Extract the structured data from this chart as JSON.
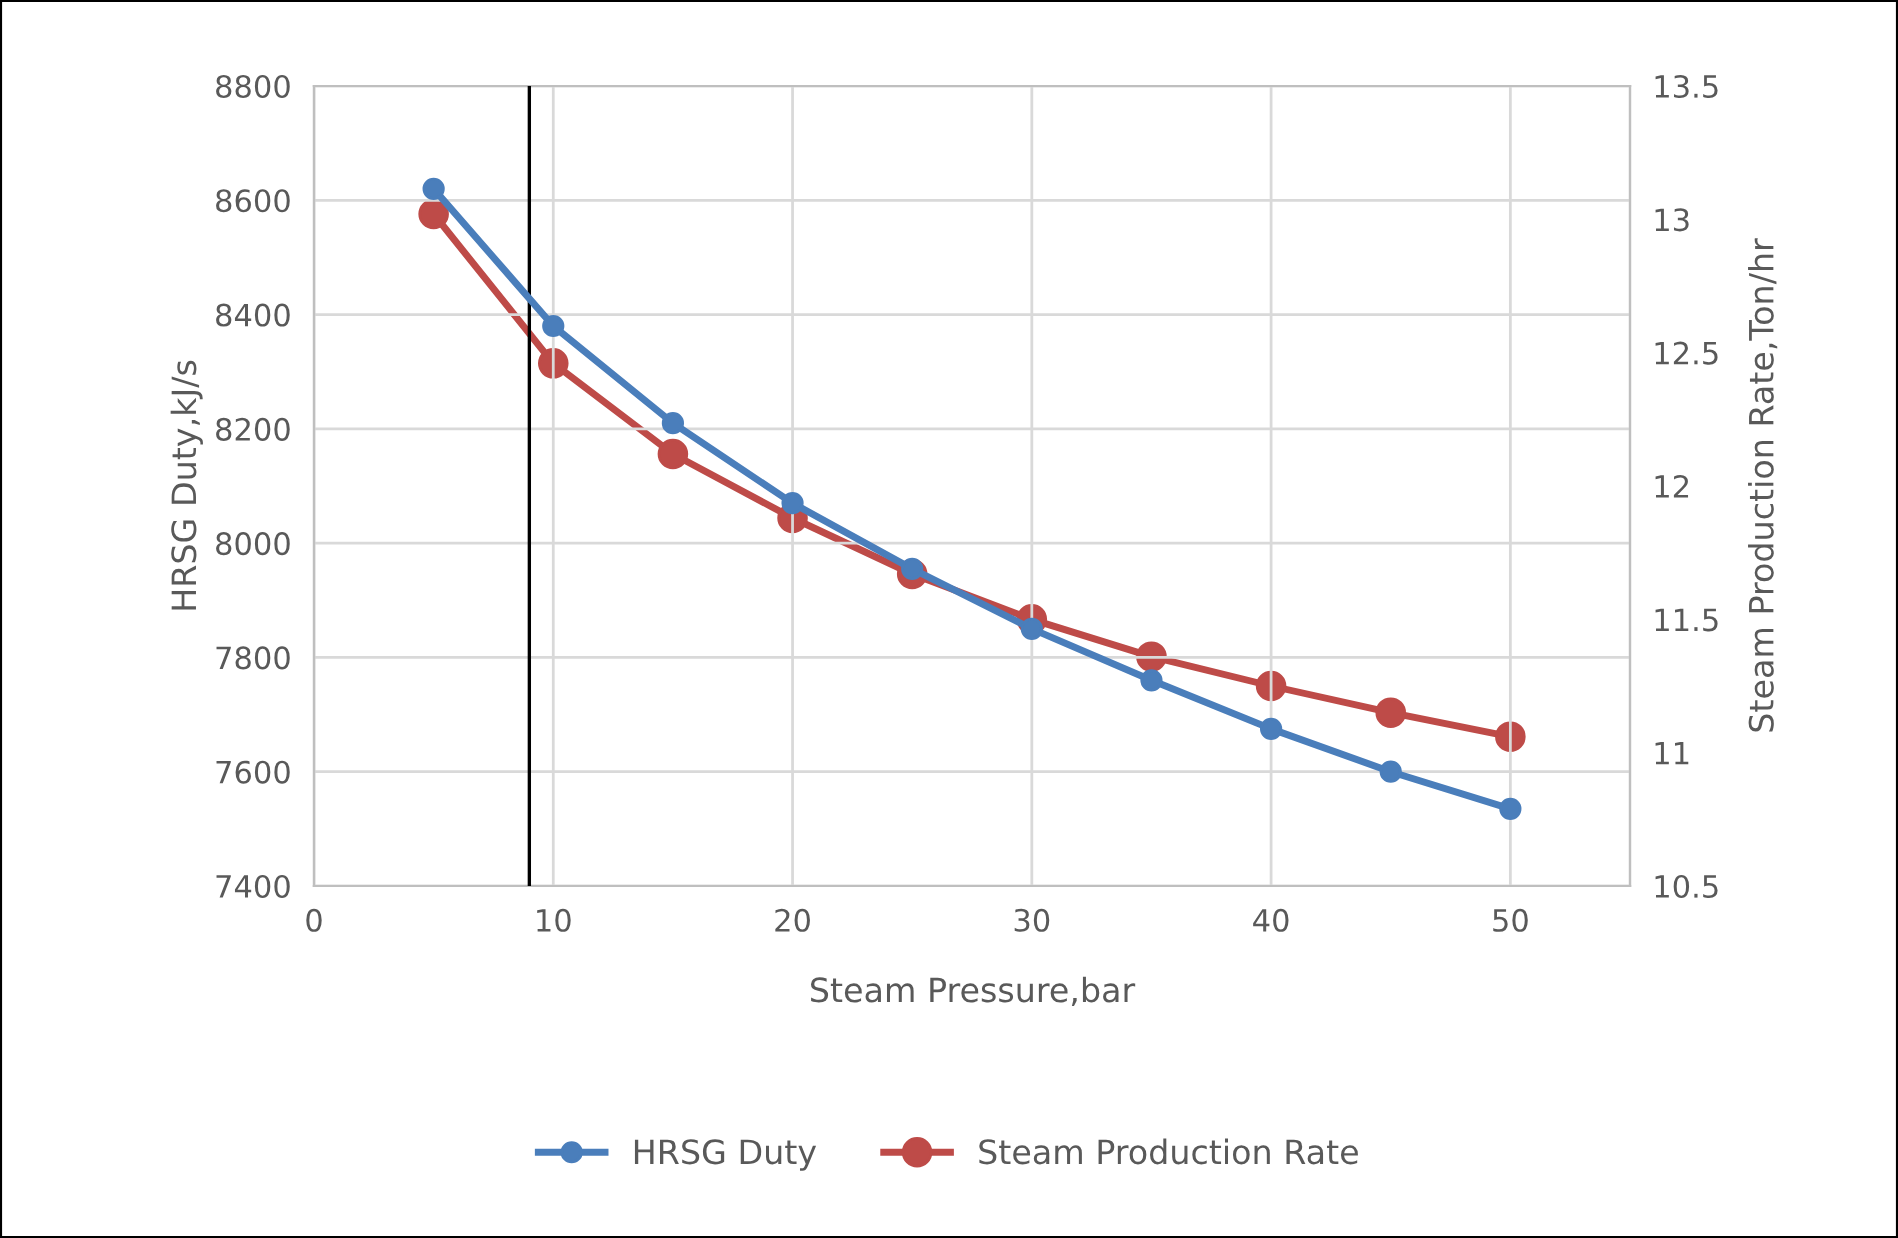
{
  "chart_data": {
    "type": "line",
    "x": [
      5,
      10,
      15,
      20,
      25,
      30,
      35,
      40,
      45,
      50
    ],
    "xlabel": "Steam Pressure,bar",
    "ylabel": "HRSG Duty,kJ/s",
    "y2label": "Steam Production Rate,Ton/hr",
    "series": [
      {
        "name": "HRSG Duty",
        "color": "#4a7ebb",
        "values": [
          8620,
          8380,
          8210,
          8070,
          7955,
          7850,
          7760,
          7675,
          7600,
          7535
        ]
      },
      {
        "name": "Steam Production Rate",
        "color": "#be4b48",
        "axis": "y2",
        "values": [
          13.02,
          12.46,
          12.12,
          11.88,
          11.67,
          11.5,
          11.36,
          11.25,
          11.15,
          11.06
        ]
      }
    ],
    "xlim": [
      0,
      55
    ],
    "xticks": [
      0,
      10,
      20,
      30,
      40,
      50
    ],
    "ylim": [
      7400,
      8800
    ],
    "yticks": [
      7400,
      7600,
      7800,
      8000,
      8200,
      8400,
      8600,
      8800
    ],
    "y2lim": [
      10.5,
      13.5
    ],
    "y2ticks": [
      10.5,
      11,
      11.5,
      12,
      12.5,
      13,
      13.5
    ],
    "ref_lines": [
      {
        "axis": "x",
        "value": 9,
        "color": "#000000"
      }
    ],
    "grid": true,
    "legend": "bottom",
    "marker": "circle",
    "line_style": "solid"
  }
}
